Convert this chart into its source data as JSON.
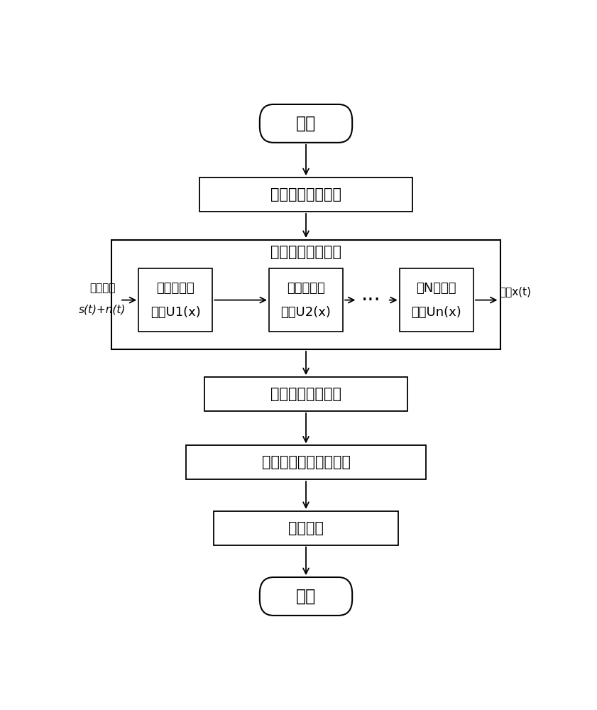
{
  "bg_color": "#ffffff",
  "line_color": "#000000",
  "box_color": "#ffffff",
  "text_color": "#000000",
  "start_text": "开始",
  "calc_text": "计算故障特征频率",
  "sr_label_text": "增强随机共振系统",
  "box1_line1": "第一级双稳",
  "box1_line2": "系统U1(x)",
  "box2_line1": "第二级双稳",
  "box2_line2": "系统U2(x)",
  "box3_line1": "第N级双稳",
  "box3_line2": "系统Un(x)",
  "input_line1": "含噪信号",
  "input_line2": "s(t)+n(t)",
  "output_text": "输出x(t)",
  "dots_text": "···",
  "analyze_text": "分析故障频率成分",
  "compare_text": "与历史正常数据相比较",
  "diagnose_text": "诊断结论",
  "end_text": "结束",
  "font_size_main": 15,
  "font_size_inner": 13,
  "font_size_small": 12,
  "font_size_io": 11
}
